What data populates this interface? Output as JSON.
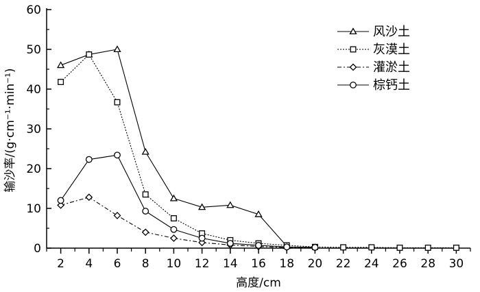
{
  "chart_data": {
    "type": "line",
    "title": "",
    "xlabel": "高度/cm",
    "ylabel": "输沙率/(g·cm⁻¹·min⁻¹)",
    "x": [
      2,
      4,
      6,
      8,
      10,
      12,
      14,
      16,
      18,
      20,
      22,
      24,
      26,
      28,
      30
    ],
    "xlim": [
      1,
      31
    ],
    "ylim": [
      0,
      60
    ],
    "xticks": [
      "2",
      "4",
      "6",
      "8",
      "10",
      "12",
      "14",
      "16",
      "18",
      "20",
      "22",
      "24",
      "26",
      "28",
      "30"
    ],
    "yticks": [
      "0",
      "10",
      "20",
      "30",
      "40",
      "50",
      "60"
    ],
    "grid": false,
    "legend_position": "top-right",
    "series": [
      {
        "name": "风沙土",
        "marker": "triangle",
        "dash": "solid",
        "x": [
          2,
          4,
          6,
          8,
          10,
          12,
          14,
          16,
          18
        ],
        "values": [
          46,
          48.7,
          50,
          24.2,
          12.5,
          10.3,
          10.8,
          8.5,
          0.5
        ]
      },
      {
        "name": "灰漠土",
        "marker": "square",
        "dash": "dotted",
        "x": [
          2,
          4,
          6,
          8,
          10,
          12,
          14,
          16,
          18,
          20,
          22,
          24,
          26,
          28,
          30
        ],
        "values": [
          41.8,
          48.7,
          36.7,
          13.5,
          7.5,
          3.7,
          2.0,
          1.2,
          0.7,
          0.3,
          0.2,
          0.2,
          0.1,
          0.1,
          0.1
        ]
      },
      {
        "name": "灌淤土",
        "marker": "diamond",
        "dash": "dashdot",
        "x": [
          2,
          4,
          6,
          8,
          10,
          12,
          14,
          16,
          18,
          20
        ],
        "values": [
          10.8,
          12.8,
          8.2,
          4.0,
          2.5,
          1.4,
          0.8,
          0.4,
          0.2,
          0.1
        ]
      },
      {
        "name": "棕钙土",
        "marker": "circle",
        "dash": "solid",
        "x": [
          2,
          4,
          6,
          8,
          10,
          12,
          14,
          16,
          18,
          20
        ],
        "values": [
          12.0,
          22.3,
          23.4,
          9.3,
          4.7,
          2.5,
          1.2,
          0.7,
          0.3,
          0.2
        ]
      }
    ]
  }
}
